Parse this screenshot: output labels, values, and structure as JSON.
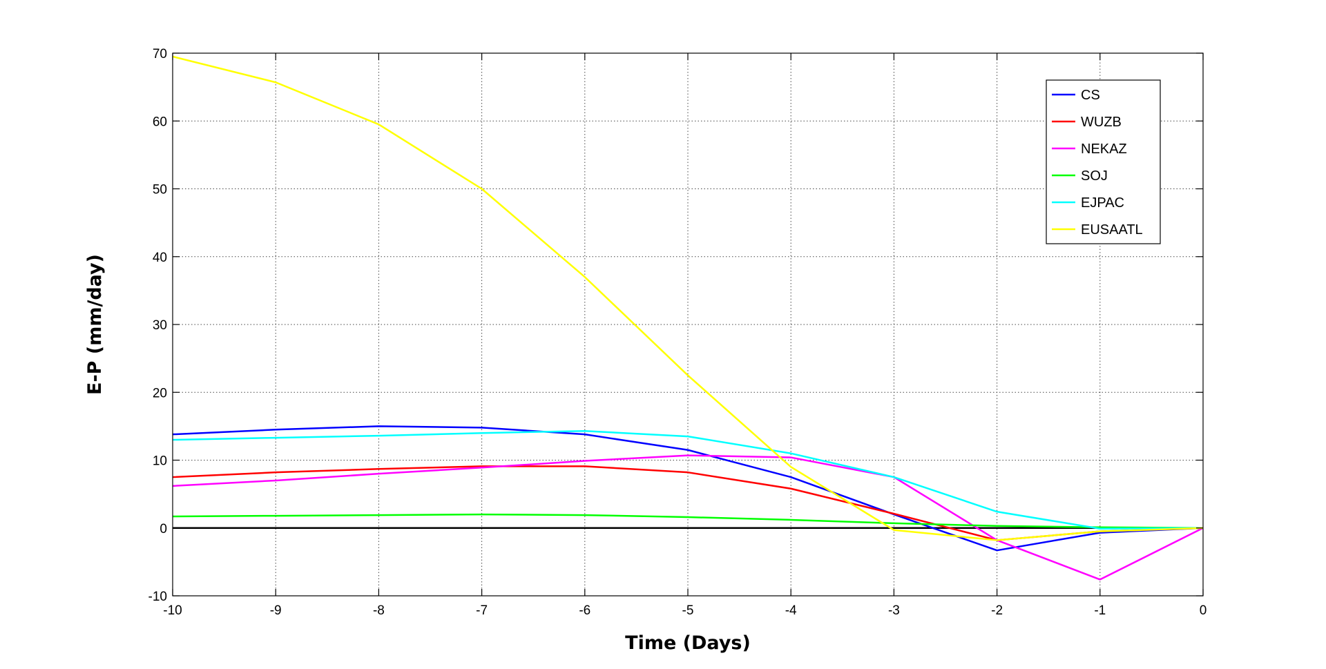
{
  "chart_data": {
    "type": "line",
    "xlabel": "Time (Days)",
    "ylabel": "E-P (mm/day)",
    "xlim": [
      -10,
      0
    ],
    "ylim": [
      -10,
      70
    ],
    "xticks": [
      -10,
      -9,
      -8,
      -7,
      -6,
      -5,
      -4,
      -3,
      -2,
      -1,
      0
    ],
    "yticks": [
      -10,
      0,
      10,
      20,
      30,
      40,
      50,
      60,
      70
    ],
    "grid": "dotted",
    "legend_position": "top-right",
    "x": [
      -10,
      -9,
      -8,
      -7,
      -6,
      -5,
      -4,
      -3,
      -2,
      -1,
      0
    ],
    "zero_line_color": "#000000",
    "series": [
      {
        "name": "CS",
        "color": "#0000ff",
        "values": [
          13.8,
          14.5,
          15.0,
          14.8,
          13.8,
          11.5,
          7.5,
          2.0,
          -3.3,
          -0.7,
          0
        ]
      },
      {
        "name": "WUZB",
        "color": "#ff0000",
        "values": [
          7.5,
          8.2,
          8.7,
          9.1,
          9.1,
          8.2,
          5.8,
          2.1,
          -1.8,
          -0.5,
          0
        ]
      },
      {
        "name": "NEKAZ",
        "color": "#ff00ff",
        "values": [
          6.2,
          7.0,
          8.0,
          8.9,
          9.9,
          10.7,
          10.4,
          7.5,
          -1.8,
          -7.6,
          0
        ]
      },
      {
        "name": "SOJ",
        "color": "#00ff00",
        "values": [
          1.7,
          1.8,
          1.9,
          2.0,
          1.9,
          1.6,
          1.2,
          0.7,
          0.3,
          0.1,
          0
        ]
      },
      {
        "name": "EJPAC",
        "color": "#00ffff",
        "values": [
          13.0,
          13.3,
          13.6,
          14.0,
          14.3,
          13.5,
          11.0,
          7.5,
          2.4,
          -0.1,
          0
        ]
      },
      {
        "name": "EUSAATL",
        "color": "#ffff00",
        "values": [
          69.5,
          65.7,
          59.5,
          50.0,
          37.0,
          22.5,
          9.0,
          -0.3,
          -1.8,
          -0.5,
          0
        ]
      }
    ]
  }
}
